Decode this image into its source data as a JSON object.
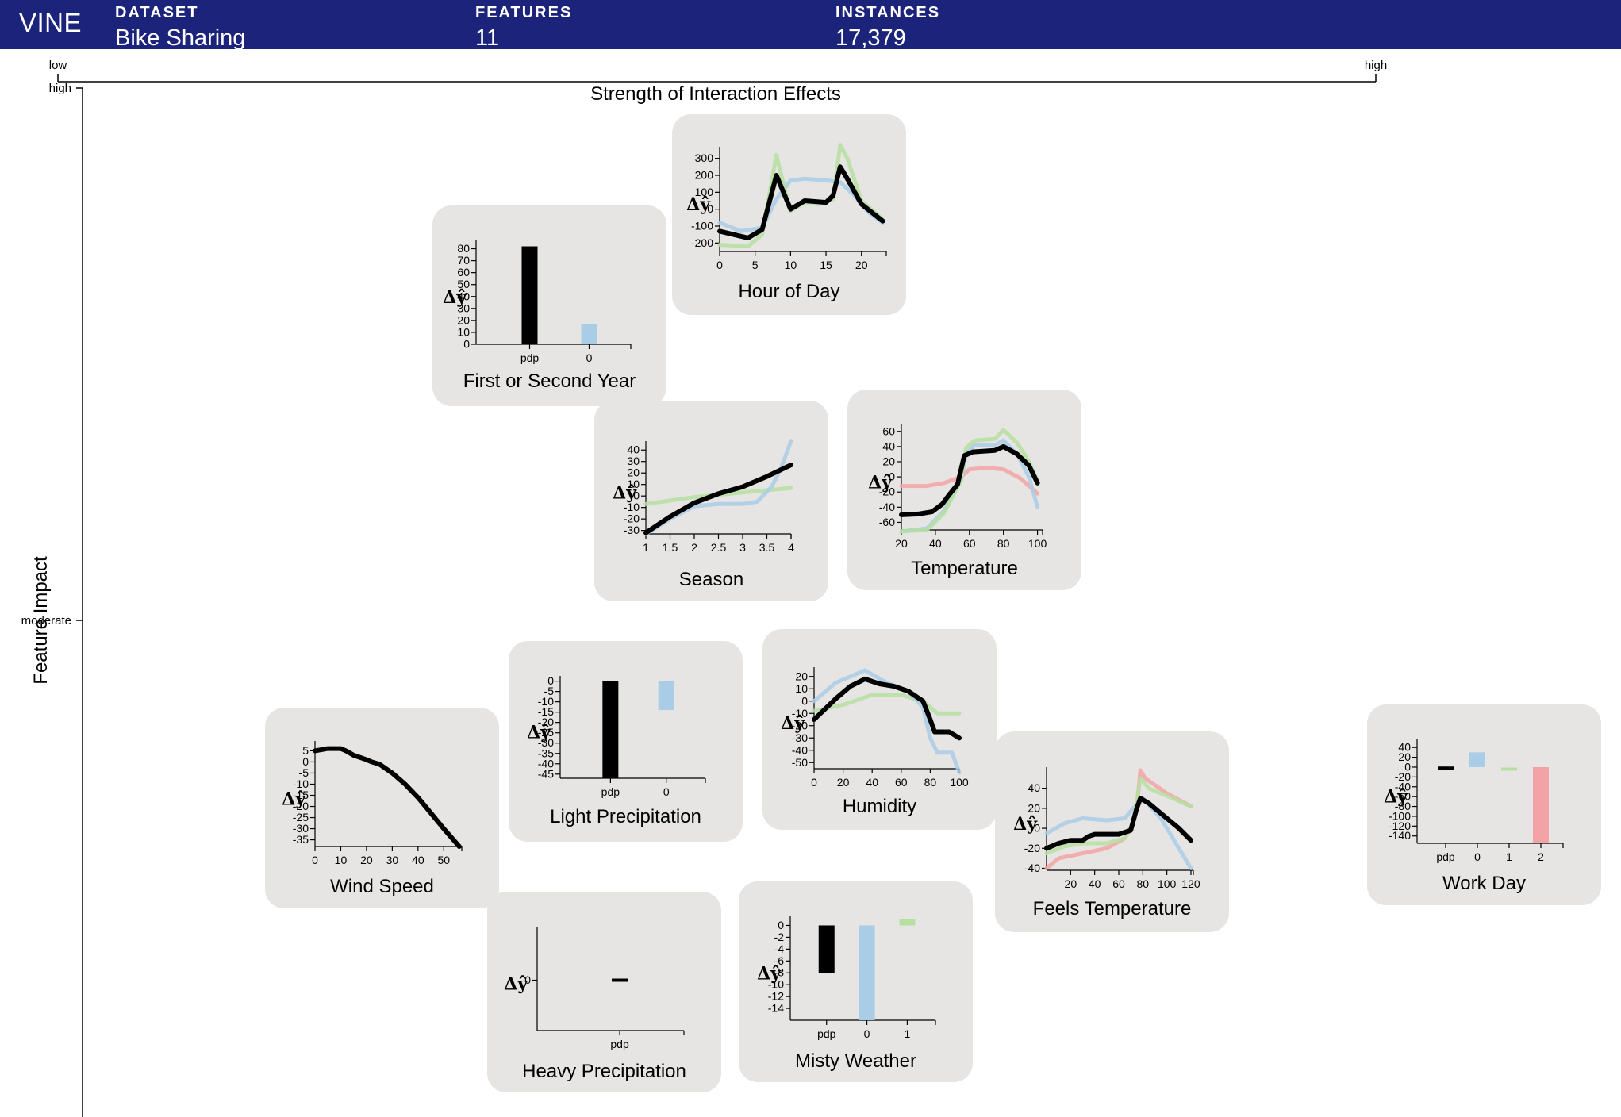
{
  "header": {
    "brand": "VINE",
    "stats": [
      {
        "label": "DATASET",
        "value": "Bike Sharing"
      },
      {
        "label": "FEATURES",
        "value": "11"
      },
      {
        "label": "INSTANCES",
        "value": "17,379"
      }
    ]
  },
  "axes": {
    "x_title": "Strength of Interaction Effects",
    "x_low": "low",
    "x_high": "high",
    "y_title": "Feature Impact",
    "y_high": "high",
    "y_moderate": "moderate"
  },
  "colors": {
    "pdp": "#000000",
    "cluster1": "#a9cde6",
    "cluster2": "#b6e0a2",
    "cluster3": "#f3a3a6",
    "card": "#e6e5e4",
    "header": "#1b237a"
  },
  "chart_data": [
    {
      "title": "Hour of Day",
      "type": "line",
      "xlabel": "Δŷ",
      "x_ticks": [
        0,
        5,
        10,
        15,
        20
      ],
      "xlim": [
        0,
        23.5
      ],
      "y_ticks": [
        300,
        200,
        100,
        0,
        -100,
        -200
      ],
      "ylim": [
        -250,
        350
      ],
      "series": [
        {
          "color": "#a9cde6",
          "points": [
            [
              0,
              -80
            ],
            [
              3,
              -130
            ],
            [
              6,
              -110
            ],
            [
              8,
              60
            ],
            [
              10,
              170
            ],
            [
              12,
              180
            ],
            [
              15,
              170
            ],
            [
              17,
              160
            ],
            [
              19,
              80
            ],
            [
              21,
              -20
            ],
            [
              23,
              -80
            ]
          ]
        },
        {
          "color": "#b6e0a2",
          "points": [
            [
              0,
              -210
            ],
            [
              4,
              -220
            ],
            [
              6,
              -150
            ],
            [
              8,
              320
            ],
            [
              9,
              150
            ],
            [
              10,
              -10
            ],
            [
              12,
              40
            ],
            [
              14,
              30
            ],
            [
              16,
              60
            ],
            [
              17,
              380
            ],
            [
              18,
              300
            ],
            [
              20,
              50
            ],
            [
              23,
              -60
            ]
          ]
        },
        {
          "color": "#000000",
          "points": [
            [
              0,
              -130
            ],
            [
              4,
              -170
            ],
            [
              6,
              -120
            ],
            [
              8,
              200
            ],
            [
              9,
              100
            ],
            [
              10,
              0
            ],
            [
              12,
              50
            ],
            [
              15,
              40
            ],
            [
              16,
              80
            ],
            [
              17,
              250
            ],
            [
              18,
              180
            ],
            [
              20,
              30
            ],
            [
              23,
              -70
            ]
          ]
        }
      ]
    },
    {
      "title": "First or Second Year",
      "type": "bar",
      "xlabel": "Δŷ",
      "categories": [
        "pdp",
        "0"
      ],
      "values": [
        82,
        17
      ],
      "y_ticks": [
        80,
        70,
        60,
        50,
        40,
        30,
        20,
        10,
        0
      ],
      "ylim": [
        0,
        85
      ]
    },
    {
      "title": "Season",
      "type": "line",
      "xlabel": "Δŷ",
      "x_ticks": [
        1.0,
        1.5,
        2.0,
        2.5,
        3.0,
        3.5,
        4.0
      ],
      "xlim": [
        1.0,
        4.0
      ],
      "y_ticks": [
        40,
        30,
        20,
        10,
        0,
        -10,
        -20,
        -30
      ],
      "ylim": [
        -33,
        45
      ],
      "series": [
        {
          "color": "#b6e0a2",
          "points": [
            [
              1.0,
              -7
            ],
            [
              2.0,
              -1
            ],
            [
              3.0,
              3
            ],
            [
              4.0,
              7
            ]
          ]
        },
        {
          "color": "#a9cde6",
          "points": [
            [
              1.0,
              -33
            ],
            [
              1.5,
              -20
            ],
            [
              2.0,
              -9
            ],
            [
              2.5,
              -7
            ],
            [
              3.0,
              -7
            ],
            [
              3.3,
              -5
            ],
            [
              3.6,
              8
            ],
            [
              3.8,
              25
            ],
            [
              4.0,
              48
            ]
          ]
        },
        {
          "color": "#000000",
          "points": [
            [
              1.0,
              -32
            ],
            [
              1.5,
              -18
            ],
            [
              2.0,
              -6
            ],
            [
              2.5,
              2
            ],
            [
              3.0,
              8
            ],
            [
              3.5,
              17
            ],
            [
              4.0,
              27
            ]
          ]
        }
      ]
    },
    {
      "title": "Temperature",
      "type": "line",
      "xlabel": "Δŷ",
      "x_ticks": [
        20,
        40,
        60,
        80,
        100
      ],
      "xlim": [
        20,
        103
      ],
      "y_ticks": [
        60,
        40,
        20,
        0,
        -20,
        -40,
        -60
      ],
      "ylim": [
        -70,
        65
      ],
      "series": [
        {
          "color": "#f3a3a6",
          "points": [
            [
              20,
              -12
            ],
            [
              35,
              -12
            ],
            [
              45,
              -8
            ],
            [
              55,
              0
            ],
            [
              60,
              10
            ],
            [
              70,
              12
            ],
            [
              80,
              10
            ],
            [
              90,
              -2
            ],
            [
              100,
              -22
            ]
          ]
        },
        {
          "color": "#a9cde6",
          "points": [
            [
              20,
              -72
            ],
            [
              35,
              -68
            ],
            [
              45,
              -45
            ],
            [
              55,
              -5
            ],
            [
              58,
              30
            ],
            [
              63,
              42
            ],
            [
              75,
              42
            ],
            [
              80,
              48
            ],
            [
              88,
              30
            ],
            [
              95,
              0
            ],
            [
              100,
              -40
            ]
          ]
        },
        {
          "color": "#b6e0a2",
          "points": [
            [
              20,
              -72
            ],
            [
              35,
              -70
            ],
            [
              45,
              -48
            ],
            [
              55,
              -5
            ],
            [
              58,
              38
            ],
            [
              63,
              48
            ],
            [
              75,
              50
            ],
            [
              80,
              62
            ],
            [
              88,
              45
            ],
            [
              95,
              20
            ],
            [
              100,
              -5
            ]
          ]
        },
        {
          "color": "#000000",
          "points": [
            [
              20,
              -50
            ],
            [
              30,
              -49
            ],
            [
              38,
              -46
            ],
            [
              44,
              -36
            ],
            [
              48,
              -24
            ],
            [
              53,
              -10
            ],
            [
              57,
              28
            ],
            [
              62,
              33
            ],
            [
              75,
              35
            ],
            [
              80,
              40
            ],
            [
              88,
              30
            ],
            [
              95,
              15
            ],
            [
              100,
              -8
            ]
          ]
        }
      ]
    },
    {
      "title": "Light Precipitation",
      "type": "bar",
      "xlabel": "Δŷ",
      "categories": [
        "pdp",
        "0"
      ],
      "values": [
        -47,
        -14
      ],
      "y_ticks": [
        0,
        -5,
        -10,
        -15,
        -20,
        -25,
        -30,
        -35,
        -40,
        -45
      ],
      "ylim": [
        -47,
        1
      ]
    },
    {
      "title": "Humidity",
      "type": "line",
      "xlabel": "Δŷ",
      "x_ticks": [
        0,
        20,
        40,
        60,
        80,
        100
      ],
      "xlim": [
        0,
        100
      ],
      "y_ticks": [
        20,
        10,
        0,
        -10,
        -20,
        -30,
        -40,
        -50
      ],
      "ylim": [
        -55,
        25
      ],
      "series": [
        {
          "color": "#b6e0a2",
          "points": [
            [
              0,
              -8
            ],
            [
              20,
              -3
            ],
            [
              40,
              5
            ],
            [
              60,
              5
            ],
            [
              75,
              0
            ],
            [
              85,
              -10
            ],
            [
              100,
              -10
            ]
          ]
        },
        {
          "color": "#a9cde6",
          "points": [
            [
              0,
              0
            ],
            [
              15,
              15
            ],
            [
              35,
              25
            ],
            [
              50,
              15
            ],
            [
              65,
              8
            ],
            [
              75,
              -5
            ],
            [
              80,
              -30
            ],
            [
              85,
              -42
            ],
            [
              95,
              -42
            ],
            [
              100,
              -58
            ]
          ]
        },
        {
          "color": "#000000",
          "points": [
            [
              0,
              -15
            ],
            [
              15,
              2
            ],
            [
              25,
              12
            ],
            [
              35,
              18
            ],
            [
              45,
              14
            ],
            [
              55,
              12
            ],
            [
              65,
              8
            ],
            [
              75,
              0
            ],
            [
              80,
              -15
            ],
            [
              83,
              -25
            ],
            [
              93,
              -25
            ],
            [
              100,
              -30
            ]
          ]
        }
      ]
    },
    {
      "title": "Wind Speed",
      "type": "line",
      "xlabel": "Δŷ",
      "x_ticks": [
        0,
        10,
        20,
        30,
        40,
        50
      ],
      "xlim": [
        0,
        57
      ],
      "y_ticks": [
        5,
        0,
        -5,
        -10,
        -15,
        -20,
        -25,
        -30,
        -35
      ],
      "ylim": [
        -38,
        8
      ],
      "series": [
        {
          "color": "#000000",
          "points": [
            [
              0,
              5
            ],
            [
              5,
              6
            ],
            [
              10,
              6
            ],
            [
              12,
              5
            ],
            [
              15,
              3
            ],
            [
              20,
              1
            ],
            [
              22,
              0
            ],
            [
              25,
              -1
            ],
            [
              30,
              -5
            ],
            [
              35,
              -10
            ],
            [
              40,
              -16
            ],
            [
              45,
              -23
            ],
            [
              50,
              -30
            ],
            [
              56,
              -38
            ]
          ]
        }
      ]
    },
    {
      "title": "Feels Temperature",
      "type": "line",
      "xlabel": "Δŷ",
      "x_ticks": [
        20,
        40,
        60,
        80,
        100,
        120
      ],
      "xlim": [
        0,
        122
      ],
      "y_ticks": [
        40,
        20,
        0,
        -20,
        -40
      ],
      "ylim": [
        -42,
        58
      ],
      "series": [
        {
          "color": "#f3a3a6",
          "points": [
            [
              0,
              -40
            ],
            [
              10,
              -30
            ],
            [
              30,
              -25
            ],
            [
              50,
              -20
            ],
            [
              65,
              -10
            ],
            [
              70,
              0
            ],
            [
              75,
              20
            ],
            [
              78,
              58
            ],
            [
              82,
              50
            ],
            [
              100,
              35
            ],
            [
              120,
              22
            ]
          ]
        },
        {
          "color": "#a9cde6",
          "points": [
            [
              0,
              -5
            ],
            [
              15,
              5
            ],
            [
              30,
              10
            ],
            [
              50,
              8
            ],
            [
              65,
              10
            ],
            [
              72,
              20
            ],
            [
              80,
              30
            ],
            [
              95,
              10
            ],
            [
              110,
              -20
            ],
            [
              120,
              -40
            ]
          ]
        },
        {
          "color": "#b6e0a2",
          "points": [
            [
              0,
              -25
            ],
            [
              15,
              -18
            ],
            [
              30,
              -15
            ],
            [
              50,
              -15
            ],
            [
              65,
              -10
            ],
            [
              72,
              5
            ],
            [
              78,
              50
            ],
            [
              85,
              40
            ],
            [
              105,
              30
            ],
            [
              120,
              22
            ]
          ]
        },
        {
          "color": "#000000",
          "points": [
            [
              0,
              -20
            ],
            [
              10,
              -15
            ],
            [
              20,
              -12
            ],
            [
              30,
              -12
            ],
            [
              35,
              -8
            ],
            [
              40,
              -6
            ],
            [
              50,
              -6
            ],
            [
              60,
              -6
            ],
            [
              65,
              -4
            ],
            [
              70,
              -2
            ],
            [
              75,
              20
            ],
            [
              78,
              30
            ],
            [
              85,
              25
            ],
            [
              100,
              10
            ],
            [
              110,
              0
            ],
            [
              120,
              -12
            ]
          ]
        }
      ]
    },
    {
      "title": "Work Day",
      "type": "bar",
      "xlabel": "Δŷ",
      "categories": [
        "pdp",
        "0",
        "1",
        "2"
      ],
      "values": [
        -2,
        30,
        -4,
        -155
      ],
      "y_ticks": [
        40,
        20,
        0,
        -20,
        -40,
        -60,
        -80,
        -100,
        -120,
        -140
      ],
      "ylim": [
        -155,
        50
      ]
    },
    {
      "title": "Heavy Precipitation",
      "type": "bar",
      "xlabel": "Δŷ",
      "categories": [
        "pdp"
      ],
      "values": [
        0
      ],
      "y_ticks": [
        0
      ],
      "ylim": [
        -1,
        1
      ]
    },
    {
      "title": "Misty Weather",
      "type": "bar",
      "xlabel": "Δŷ",
      "categories": [
        "pdp",
        "0",
        "1"
      ],
      "values": [
        -8,
        -16,
        1
      ],
      "y_ticks": [
        0,
        -2,
        -4,
        -6,
        -8,
        -10,
        -12,
        -14
      ],
      "ylim": [
        -16,
        1
      ]
    }
  ]
}
